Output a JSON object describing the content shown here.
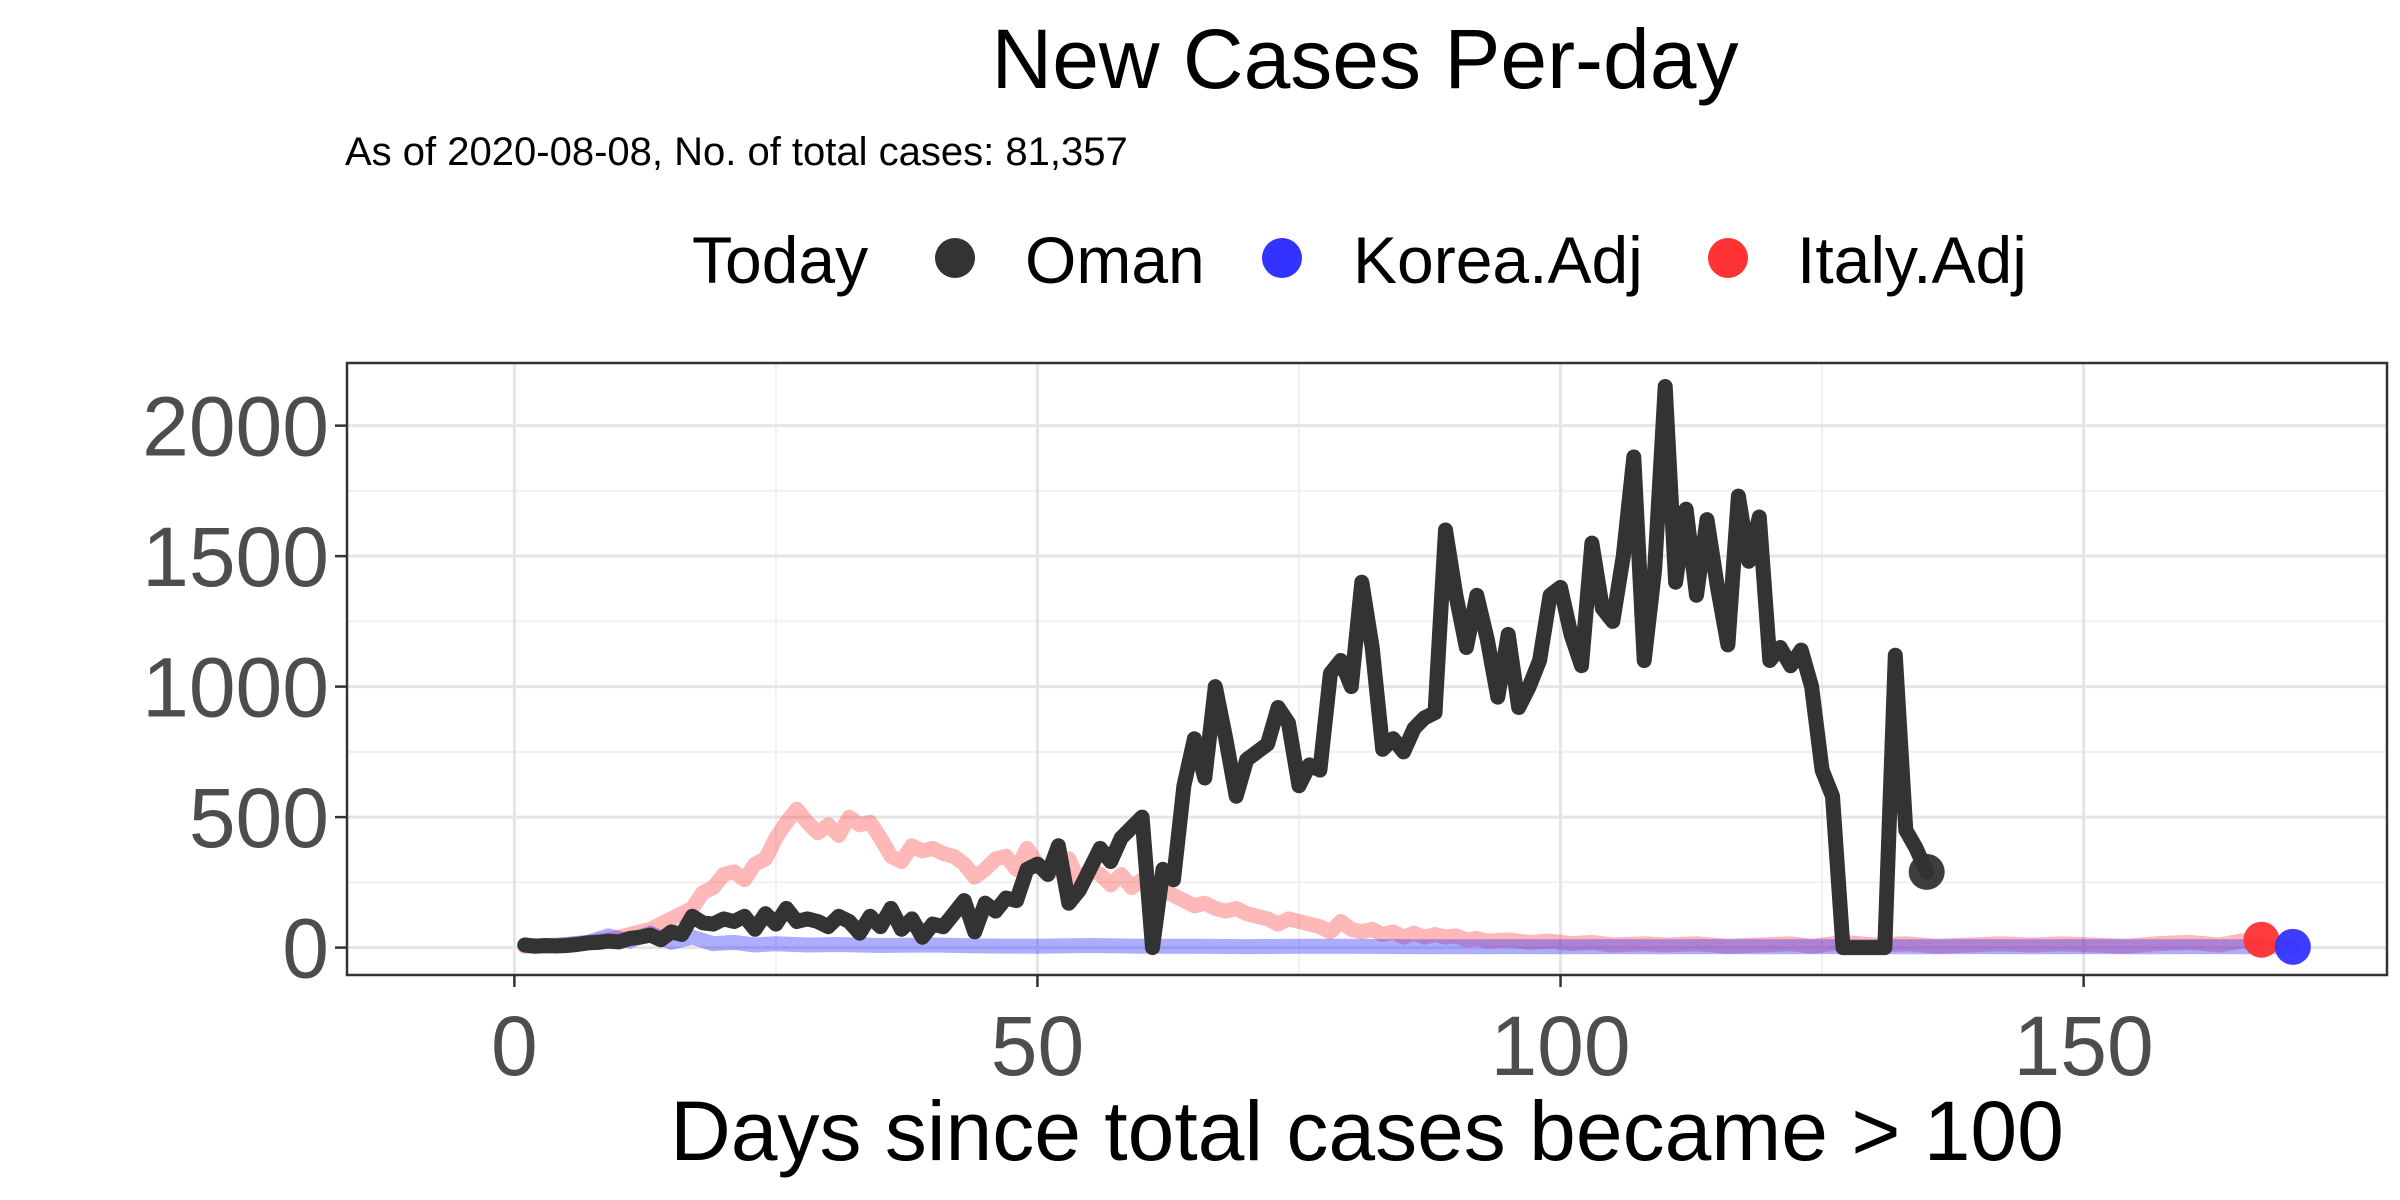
{
  "chart_data": {
    "type": "line",
    "title": "New Cases Per-day",
    "subtitle": "As of 2020-08-08, No. of total cases: 81,357",
    "xlabel": "Days since total cases became > 100",
    "ylabel": "",
    "xlim": [
      -16,
      179
    ],
    "ylim": [
      -105,
      2240
    ],
    "x_ticks": [
      0,
      50,
      100,
      150
    ],
    "y_ticks": [
      0,
      500,
      1000,
      1500,
      2000
    ],
    "grid": true,
    "legend": {
      "title": "Today",
      "position": "top",
      "entries": [
        {
          "label": "Oman",
          "color": "#333333"
        },
        {
          "label": "Korea.Adj",
          "color": "#3333ff"
        },
        {
          "label": "Italy.Adj",
          "color": "#ff3333"
        }
      ]
    },
    "series": [
      {
        "name": "Oman",
        "color": "#333333",
        "opacity": 1.0,
        "points": [
          [
            1,
            10
          ],
          [
            2,
            5
          ],
          [
            3,
            8
          ],
          [
            4,
            6
          ],
          [
            5,
            8
          ],
          [
            6,
            12
          ],
          [
            7,
            18
          ],
          [
            8,
            20
          ],
          [
            9,
            25
          ],
          [
            10,
            22
          ],
          [
            11,
            35
          ],
          [
            12,
            40
          ],
          [
            13,
            48
          ],
          [
            14,
            30
          ],
          [
            15,
            60
          ],
          [
            16,
            50
          ],
          [
            17,
            120
          ],
          [
            18,
            95
          ],
          [
            19,
            90
          ],
          [
            20,
            110
          ],
          [
            21,
            100
          ],
          [
            22,
            120
          ],
          [
            23,
            70
          ],
          [
            24,
            130
          ],
          [
            25,
            90
          ],
          [
            26,
            150
          ],
          [
            27,
            100
          ],
          [
            28,
            110
          ],
          [
            29,
            100
          ],
          [
            30,
            80
          ],
          [
            31,
            120
          ],
          [
            32,
            100
          ],
          [
            33,
            55
          ],
          [
            34,
            120
          ],
          [
            35,
            80
          ],
          [
            36,
            150
          ],
          [
            37,
            70
          ],
          [
            38,
            110
          ],
          [
            39,
            40
          ],
          [
            40,
            90
          ],
          [
            41,
            80
          ],
          [
            42,
            130
          ],
          [
            43,
            180
          ],
          [
            44,
            60
          ],
          [
            45,
            170
          ],
          [
            46,
            140
          ],
          [
            47,
            190
          ],
          [
            48,
            180
          ],
          [
            49,
            300
          ],
          [
            50,
            320
          ],
          [
            51,
            280
          ],
          [
            52,
            390
          ],
          [
            53,
            170
          ],
          [
            54,
            220
          ],
          [
            55,
            300
          ],
          [
            56,
            380
          ],
          [
            57,
            330
          ],
          [
            58,
            420
          ],
          [
            59,
            460
          ],
          [
            60,
            500
          ],
          [
            61,
            0
          ],
          [
            62,
            300
          ],
          [
            63,
            260
          ],
          [
            64,
            620
          ],
          [
            65,
            800
          ],
          [
            66,
            650
          ],
          [
            67,
            1000
          ],
          [
            68,
            800
          ],
          [
            69,
            580
          ],
          [
            70,
            720
          ],
          [
            71,
            750
          ],
          [
            72,
            780
          ],
          [
            73,
            920
          ],
          [
            74,
            860
          ],
          [
            75,
            620
          ],
          [
            76,
            700
          ],
          [
            77,
            680
          ],
          [
            78,
            1050
          ],
          [
            79,
            1100
          ],
          [
            80,
            1000
          ],
          [
            81,
            1400
          ],
          [
            82,
            1150
          ],
          [
            83,
            760
          ],
          [
            84,
            800
          ],
          [
            85,
            750
          ],
          [
            86,
            840
          ],
          [
            87,
            880
          ],
          [
            88,
            900
          ],
          [
            89,
            1600
          ],
          [
            90,
            1350
          ],
          [
            91,
            1150
          ],
          [
            92,
            1350
          ],
          [
            93,
            1180
          ],
          [
            94,
            960
          ],
          [
            95,
            1200
          ],
          [
            96,
            920
          ],
          [
            97,
            1000
          ],
          [
            98,
            1100
          ],
          [
            99,
            1350
          ],
          [
            100,
            1380
          ],
          [
            101,
            1200
          ],
          [
            102,
            1080
          ],
          [
            103,
            1550
          ],
          [
            104,
            1300
          ],
          [
            105,
            1250
          ],
          [
            106,
            1500
          ],
          [
            107,
            1880
          ],
          [
            108,
            1100
          ],
          [
            109,
            1450
          ],
          [
            110,
            2150
          ],
          [
            111,
            1400
          ],
          [
            112,
            1680
          ],
          [
            113,
            1350
          ],
          [
            114,
            1640
          ],
          [
            115,
            1380
          ],
          [
            116,
            1160
          ],
          [
            117,
            1730
          ],
          [
            118,
            1480
          ],
          [
            119,
            1650
          ],
          [
            120,
            1100
          ],
          [
            121,
            1150
          ],
          [
            122,
            1080
          ],
          [
            123,
            1140
          ],
          [
            124,
            1000
          ],
          [
            125,
            680
          ],
          [
            126,
            580
          ],
          [
            127,
            0
          ],
          [
            128,
            0
          ],
          [
            129,
            0
          ],
          [
            130,
            0
          ],
          [
            131,
            0
          ],
          [
            132,
            1120
          ],
          [
            133,
            450
          ],
          [
            134,
            380
          ],
          [
            135,
            290
          ]
        ]
      },
      {
        "name": "Korea.Adj",
        "color": "#3333ff",
        "opacity": 0.4,
        "points": [
          [
            1,
            10
          ],
          [
            3,
            5
          ],
          [
            5,
            12
          ],
          [
            7,
            20
          ],
          [
            9,
            45
          ],
          [
            11,
            25
          ],
          [
            13,
            55
          ],
          [
            15,
            20
          ],
          [
            17,
            40
          ],
          [
            19,
            15
          ],
          [
            21,
            20
          ],
          [
            23,
            10
          ],
          [
            25,
            15
          ],
          [
            28,
            10
          ],
          [
            31,
            12
          ],
          [
            35,
            8
          ],
          [
            40,
            10
          ],
          [
            45,
            6
          ],
          [
            50,
            5
          ],
          [
            55,
            8
          ],
          [
            60,
            5
          ],
          [
            65,
            5
          ],
          [
            70,
            4
          ],
          [
            75,
            5
          ],
          [
            80,
            5
          ],
          [
            85,
            4
          ],
          [
            90,
            3
          ],
          [
            95,
            4
          ],
          [
            100,
            3
          ],
          [
            105,
            4
          ],
          [
            110,
            3
          ],
          [
            115,
            4
          ],
          [
            120,
            3
          ],
          [
            125,
            4
          ],
          [
            130,
            3
          ],
          [
            135,
            3
          ],
          [
            140,
            4
          ],
          [
            145,
            3
          ],
          [
            150,
            4
          ],
          [
            155,
            3
          ],
          [
            160,
            4
          ],
          [
            165,
            3
          ],
          [
            170,
            3
          ]
        ]
      },
      {
        "name": "Italy.Adj",
        "color": "#ff3333",
        "opacity": 0.35,
        "points": [
          [
            1,
            5
          ],
          [
            3,
            8
          ],
          [
            5,
            12
          ],
          [
            7,
            20
          ],
          [
            9,
            30
          ],
          [
            11,
            50
          ],
          [
            13,
            70
          ],
          [
            15,
            110
          ],
          [
            17,
            150
          ],
          [
            18,
            210
          ],
          [
            19,
            230
          ],
          [
            20,
            280
          ],
          [
            21,
            290
          ],
          [
            22,
            260
          ],
          [
            23,
            320
          ],
          [
            24,
            340
          ],
          [
            25,
            420
          ],
          [
            26,
            480
          ],
          [
            27,
            530
          ],
          [
            28,
            480
          ],
          [
            29,
            440
          ],
          [
            30,
            470
          ],
          [
            31,
            430
          ],
          [
            32,
            500
          ],
          [
            33,
            470
          ],
          [
            34,
            480
          ],
          [
            35,
            420
          ],
          [
            36,
            350
          ],
          [
            37,
            330
          ],
          [
            38,
            390
          ],
          [
            39,
            370
          ],
          [
            40,
            380
          ],
          [
            41,
            360
          ],
          [
            42,
            350
          ],
          [
            43,
            320
          ],
          [
            44,
            270
          ],
          [
            45,
            300
          ],
          [
            46,
            340
          ],
          [
            47,
            350
          ],
          [
            48,
            300
          ],
          [
            49,
            380
          ],
          [
            50,
            320
          ],
          [
            51,
            290
          ],
          [
            52,
            300
          ],
          [
            53,
            340
          ],
          [
            54,
            250
          ],
          [
            55,
            300
          ],
          [
            56,
            280
          ],
          [
            57,
            240
          ],
          [
            58,
            280
          ],
          [
            59,
            230
          ],
          [
            60,
            260
          ],
          [
            61,
            240
          ],
          [
            62,
            220
          ],
          [
            63,
            200
          ],
          [
            64,
            180
          ],
          [
            65,
            160
          ],
          [
            66,
            170
          ],
          [
            67,
            150
          ],
          [
            68,
            140
          ],
          [
            69,
            150
          ],
          [
            70,
            130
          ],
          [
            71,
            120
          ],
          [
            72,
            110
          ],
          [
            73,
            90
          ],
          [
            74,
            110
          ],
          [
            75,
            100
          ],
          [
            76,
            90
          ],
          [
            77,
            80
          ],
          [
            78,
            60
          ],
          [
            79,
            100
          ],
          [
            80,
            70
          ],
          [
            81,
            60
          ],
          [
            82,
            70
          ],
          [
            83,
            50
          ],
          [
            84,
            60
          ],
          [
            85,
            40
          ],
          [
            86,
            55
          ],
          [
            87,
            40
          ],
          [
            88,
            50
          ],
          [
            89,
            40
          ],
          [
            90,
            45
          ],
          [
            91,
            30
          ],
          [
            92,
            35
          ],
          [
            93,
            25
          ],
          [
            95,
            30
          ],
          [
            97,
            20
          ],
          [
            99,
            25
          ],
          [
            101,
            15
          ],
          [
            103,
            20
          ],
          [
            105,
            10
          ],
          [
            108,
            15
          ],
          [
            110,
            10
          ],
          [
            113,
            15
          ],
          [
            116,
            5
          ],
          [
            119,
            10
          ],
          [
            122,
            15
          ],
          [
            124,
            5
          ],
          [
            127,
            20
          ],
          [
            130,
            10
          ],
          [
            133,
            15
          ],
          [
            136,
            5
          ],
          [
            139,
            10
          ],
          [
            142,
            15
          ],
          [
            145,
            10
          ],
          [
            148,
            15
          ],
          [
            151,
            10
          ],
          [
            154,
            5
          ],
          [
            157,
            15
          ],
          [
            160,
            20
          ],
          [
            163,
            10
          ],
          [
            165,
            25
          ],
          [
            167,
            30
          ]
        ]
      }
    ],
    "today_markers": [
      {
        "series": "Oman",
        "x": 135,
        "y": 290
      },
      {
        "series": "Italy.Adj",
        "x": 167,
        "y": 30
      },
      {
        "series": "Korea.Adj",
        "x": 170,
        "y": 3
      }
    ]
  }
}
